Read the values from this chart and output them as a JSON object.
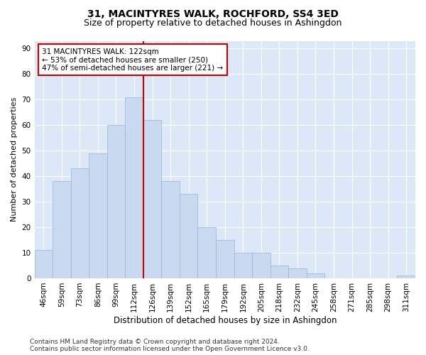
{
  "title": "31, MACINTYRES WALK, ROCHFORD, SS4 3ED",
  "subtitle": "Size of property relative to detached houses in Ashingdon",
  "xlabel": "Distribution of detached houses by size in Ashingdon",
  "ylabel": "Number of detached properties",
  "categories": [
    "46sqm",
    "59sqm",
    "73sqm",
    "86sqm",
    "99sqm",
    "112sqm",
    "126sqm",
    "139sqm",
    "152sqm",
    "165sqm",
    "179sqm",
    "192sqm",
    "205sqm",
    "218sqm",
    "232sqm",
    "245sqm",
    "258sqm",
    "271sqm",
    "285sqm",
    "298sqm",
    "311sqm"
  ],
  "values": [
    11,
    38,
    43,
    49,
    60,
    71,
    62,
    38,
    33,
    20,
    15,
    10,
    10,
    5,
    4,
    2,
    0,
    0,
    0,
    0,
    1
  ],
  "bar_color": "#c9d9ef",
  "bar_edge_color": "#a0bcd8",
  "vline_x_index": 5.5,
  "vline_color": "#cc0000",
  "annotation_line1": "31 MACINTYRES WALK: 122sqm",
  "annotation_line2": "← 53% of detached houses are smaller (250)",
  "annotation_line3": "47% of semi-detached houses are larger (221) →",
  "annotation_box_color": "#ffffff",
  "annotation_box_edge": "#cc0000",
  "background_color": "#dce8f7",
  "grid_color": "#ffffff",
  "ylim": [
    0,
    93
  ],
  "yticks": [
    0,
    10,
    20,
    30,
    40,
    50,
    60,
    70,
    80,
    90
  ],
  "footer": "Contains HM Land Registry data © Crown copyright and database right 2024.\nContains public sector information licensed under the Open Government Licence v3.0.",
  "title_fontsize": 10,
  "subtitle_fontsize": 9,
  "xlabel_fontsize": 8.5,
  "ylabel_fontsize": 8,
  "tick_fontsize": 7.5,
  "annotation_fontsize": 7.5,
  "footer_fontsize": 6.5
}
